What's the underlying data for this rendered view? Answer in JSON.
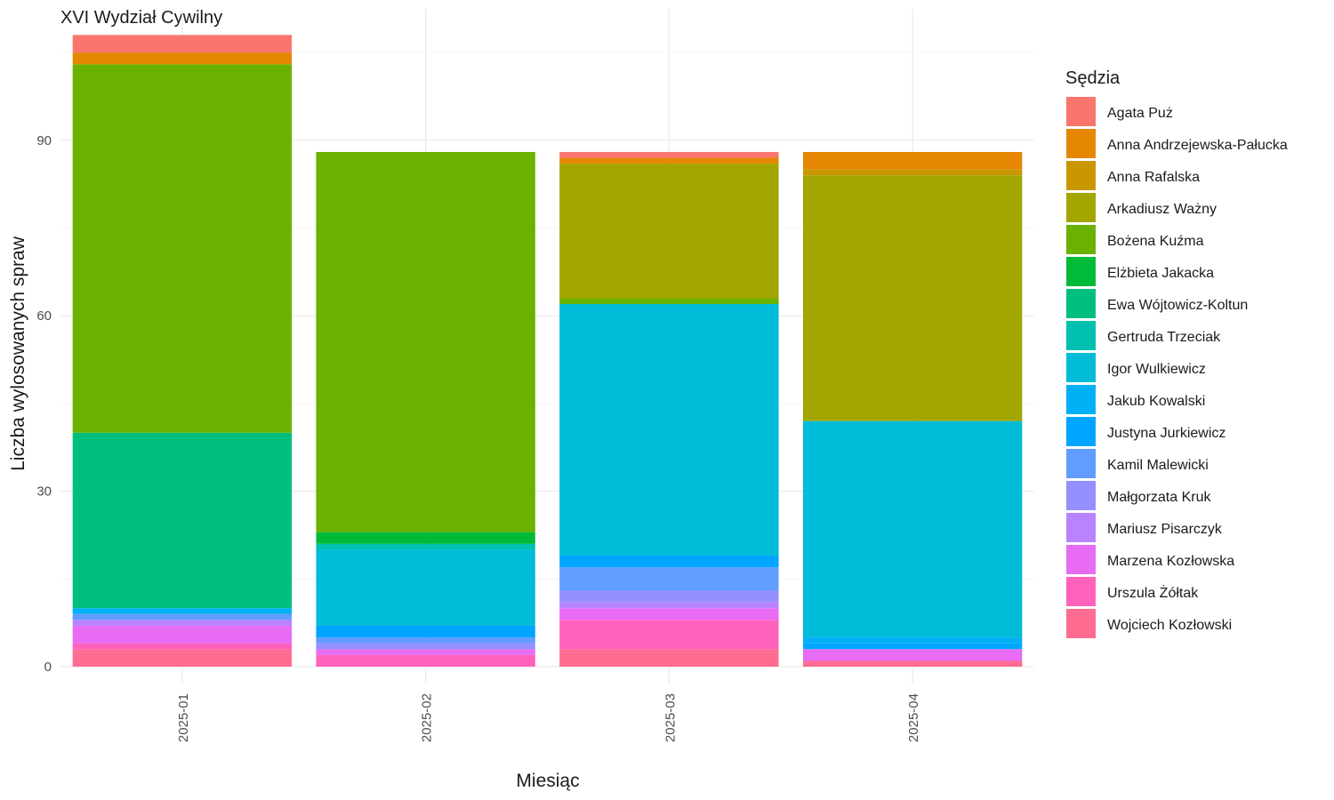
{
  "chart_data": {
    "type": "bar",
    "stacked": true,
    "title": "XVI Wydział Cywilny",
    "xlabel": "Miesiąc",
    "ylabel": "Liczba wylosowanych spraw",
    "ylim": [
      0,
      108
    ],
    "yticks": [
      0,
      30,
      60,
      90
    ],
    "grid": true,
    "legend_title": "Sędzia",
    "legend_position": "right",
    "categories": [
      "2025-01",
      "2025-02",
      "2025-03",
      "2025-04"
    ],
    "series": [
      {
        "name": "Agata Puż",
        "color": "#F8766D",
        "values": [
          3,
          0,
          1,
          0
        ]
      },
      {
        "name": "Anna Andrzejewska-Pałucka",
        "color": "#E58700",
        "values": [
          2,
          0,
          1,
          3
        ]
      },
      {
        "name": "Anna Rafalska",
        "color": "#C99800",
        "values": [
          0,
          0,
          0,
          1
        ]
      },
      {
        "name": "Arkadiusz Ważny",
        "color": "#A3A500",
        "values": [
          0,
          0,
          23,
          42
        ]
      },
      {
        "name": "Bożena Kuźma",
        "color": "#6BB100",
        "values": [
          63,
          65,
          1,
          0
        ]
      },
      {
        "name": "Elżbieta Jakacka",
        "color": "#00BA38",
        "values": [
          0,
          2,
          0,
          0
        ]
      },
      {
        "name": "Ewa Wójtowicz-Koltun",
        "color": "#00BF7D",
        "values": [
          30,
          0,
          0,
          0
        ]
      },
      {
        "name": "Gertruda Trzeciak",
        "color": "#00C0AF",
        "values": [
          0,
          1,
          0,
          0
        ]
      },
      {
        "name": "Igor Wulkiewicz",
        "color": "#00BCD8",
        "values": [
          0,
          13,
          43,
          37
        ]
      },
      {
        "name": "Jakub Kowalski",
        "color": "#00B0F6",
        "values": [
          1,
          0,
          0,
          1
        ]
      },
      {
        "name": "Justyna Jurkiewicz",
        "color": "#00A5FF",
        "values": [
          0,
          2,
          2,
          1
        ]
      },
      {
        "name": "Kamil Malewicki",
        "color": "#619CFF",
        "values": [
          1,
          1,
          4,
          0
        ]
      },
      {
        "name": "Małgorzata Kruk",
        "color": "#9590FF",
        "values": [
          0,
          1,
          2,
          0
        ]
      },
      {
        "name": "Mariusz Pisarczyk",
        "color": "#B983FF",
        "values": [
          1,
          0,
          1,
          0
        ]
      },
      {
        "name": "Marzena Kozłowska",
        "color": "#E76BF3",
        "values": [
          3,
          1,
          2,
          2
        ]
      },
      {
        "name": "Urszula Żółtak",
        "color": "#FF62BC",
        "values": [
          1,
          2,
          5,
          0
        ]
      },
      {
        "name": "Wojciech Kozłowski",
        "color": "#FF6C91",
        "values": [
          3,
          0,
          3,
          1
        ]
      }
    ]
  }
}
